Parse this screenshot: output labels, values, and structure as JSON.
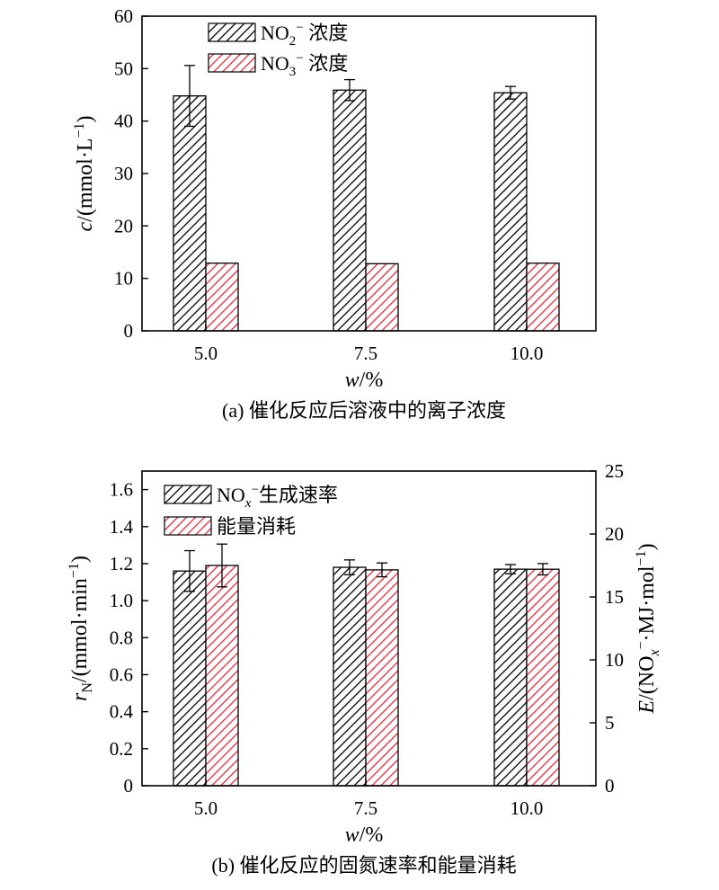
{
  "chart_data": [
    {
      "type": "bar",
      "panel": "a",
      "categories": [
        "5.0",
        "7.5",
        "10.0"
      ],
      "xlabel_var": "w",
      "xlabel_unit": "/%",
      "ylabel_var": "c",
      "ylabel_unit": "/(mmol·L",
      "ylabel_sup": "−1",
      "ylabel_close": ")",
      "ylim": [
        0,
        60
      ],
      "yticks": [
        0,
        10,
        20,
        30,
        40,
        50,
        60
      ],
      "legend_position": "top-left",
      "series": [
        {
          "name_main": "NO",
          "name_sub": "2",
          "name_sup": "−",
          "name_tail": " 浓度",
          "values": [
            44.8,
            45.9,
            45.4
          ],
          "errors": [
            5.8,
            2.0,
            1.2
          ],
          "axis": "left",
          "color": "#000000"
        },
        {
          "name_main": "NO",
          "name_sub": "3",
          "name_sup": "−",
          "name_tail": " 浓度",
          "values": [
            12.9,
            12.8,
            12.9
          ],
          "errors": [
            0,
            0,
            0
          ],
          "axis": "left",
          "color": "#e8283b"
        }
      ],
      "caption": "(a) 催化反应后溶液中的离子浓度"
    },
    {
      "type": "bar",
      "panel": "b",
      "categories": [
        "5.0",
        "7.5",
        "10.0"
      ],
      "xlabel_var": "w",
      "xlabel_unit": "/%",
      "ylabel_var": "r",
      "ylabel_sub": "N",
      "ylabel_unit": "/(mmol·min",
      "ylabel_sup": "−1",
      "ylabel_close": ")",
      "y2label_var": "E",
      "y2label_unit": "/(NO",
      "y2label_sub": "x",
      "y2label_sup": "−",
      "y2label_unit2": "·MJ·mol",
      "y2label_sup2": "−1",
      "y2label_close": ")",
      "ylim": [
        0,
        1.7
      ],
      "yticks": [
        "0",
        "0.2",
        "0.4",
        "0.6",
        "0.8",
        "1.0",
        "1.2",
        "1.4",
        "1.6"
      ],
      "y2lim": [
        0,
        25
      ],
      "y2ticks": [
        0,
        5,
        10,
        15,
        20,
        25
      ],
      "legend_position": "top-left",
      "series": [
        {
          "name_main": "NO",
          "name_sub": "x",
          "name_sup": "−",
          "name_tail": "生成速率",
          "values": [
            1.16,
            1.18,
            1.17
          ],
          "errors": [
            0.11,
            0.04,
            0.025
          ],
          "axis": "left",
          "color": "#000000"
        },
        {
          "name_main": "",
          "name_sub": "",
          "name_sup": "",
          "name_tail": "能量消耗",
          "values": [
            17.5,
            17.15,
            17.2
          ],
          "errors": [
            1.7,
            0.55,
            0.45
          ],
          "axis": "right",
          "color": "#e8283b"
        }
      ],
      "caption": "(b) 催化反应的固氮速率和能量消耗"
    }
  ]
}
